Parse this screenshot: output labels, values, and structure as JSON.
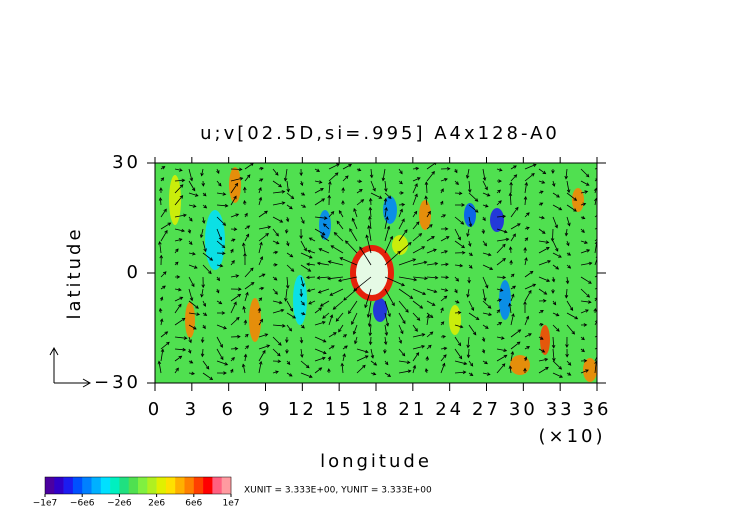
{
  "chart_data": {
    "type": "vector-contour",
    "title": "u;v[02.5D,si=.995]  A4x128-A0",
    "x_label": "longitude",
    "x_scale_note": "(×10)",
    "y_label": "latitude",
    "xlim": [
      0,
      36
    ],
    "xticks": [
      0,
      3,
      6,
      9,
      12,
      15,
      18,
      21,
      24,
      27,
      30,
      33,
      36
    ],
    "ylim": [
      -30,
      30
    ],
    "yticks": [
      {
        "value": -30,
        "label": "−30"
      },
      0,
      30
    ],
    "colorbar": {
      "clim": [
        -10000000,
        10000000
      ],
      "ticks": [
        {
          "value": -10000000,
          "label": "−1e7"
        },
        {
          "value": -6000000,
          "label": "−6e6"
        },
        {
          "value": -2000000,
          "label": "−2e6"
        },
        {
          "value": 2000000,
          "label": "2e6"
        },
        {
          "value": 6000000,
          "label": "6e6"
        },
        {
          "value": 10000000,
          "label": "1e7"
        }
      ],
      "colors": [
        "#4b00a0",
        "#3000c8",
        "#1c1cf0",
        "#0050ff",
        "#0080ff",
        "#00b0ff",
        "#00e0ff",
        "#00f0c0",
        "#20e080",
        "#50e050",
        "#80f040",
        "#b0f020",
        "#e0f000",
        "#ffe000",
        "#ffb000",
        "#ff8000",
        "#ff4000",
        "#ff0000",
        "#ff6080",
        "#ff9aa0"
      ]
    },
    "note": "XUNIT = 3.333E+00, YUNIT = 3.333E+00"
  }
}
